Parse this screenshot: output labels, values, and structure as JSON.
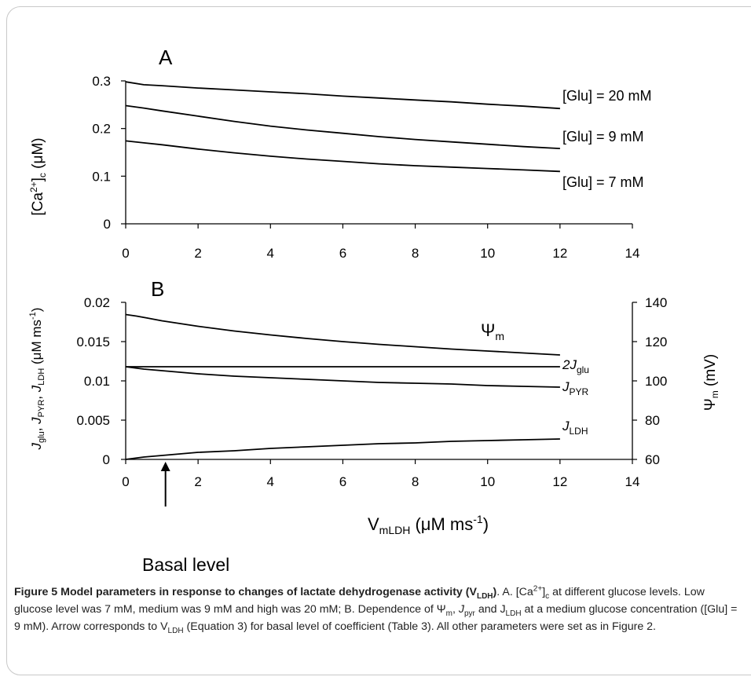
{
  "chart_data": [
    {
      "panel_label": "A",
      "type": "line",
      "ylabel": {
        "text": "[Ca",
        "sup": "2+",
        "after": "]",
        "sub": "c",
        "unit": " (μM)"
      },
      "ylim": [
        0,
        0.3
      ],
      "yticks": [
        0,
        0.1,
        0.2,
        0.3
      ],
      "xlim": [
        0,
        14
      ],
      "xticks": [
        0,
        2,
        4,
        6,
        8,
        10,
        12,
        14
      ],
      "series": [
        {
          "name": "[Glu] = 20 mM",
          "x": [
            0,
            0.5,
            1,
            2,
            3,
            4,
            5,
            6,
            7,
            8,
            9,
            10,
            11,
            12
          ],
          "values": [
            0.298,
            0.292,
            0.29,
            0.285,
            0.281,
            0.277,
            0.273,
            0.268,
            0.264,
            0.26,
            0.256,
            0.251,
            0.247,
            0.242
          ]
        },
        {
          "name": "[Glu] = 9 mM",
          "x": [
            0,
            0.5,
            1,
            2,
            3,
            4,
            5,
            6,
            7,
            8,
            9,
            10,
            11,
            12
          ],
          "values": [
            0.248,
            0.243,
            0.237,
            0.226,
            0.215,
            0.205,
            0.197,
            0.19,
            0.183,
            0.177,
            0.172,
            0.167,
            0.162,
            0.158
          ]
        },
        {
          "name": "[Glu] = 7 mM",
          "x": [
            0,
            0.5,
            1,
            2,
            3,
            4,
            5,
            6,
            7,
            8,
            9,
            10,
            11,
            12
          ],
          "values": [
            0.174,
            0.17,
            0.166,
            0.157,
            0.149,
            0.142,
            0.136,
            0.131,
            0.126,
            0.122,
            0.119,
            0.116,
            0.113,
            0.11
          ]
        }
      ]
    },
    {
      "panel_label": "B",
      "type": "line",
      "ylabel": {
        "parts": [
          {
            "t": "J",
            "i": true
          },
          {
            "t": "glu",
            "sub": true
          },
          {
            "t": ", "
          },
          {
            "t": "J",
            "i": true
          },
          {
            "t": "PYR",
            "sub": true
          },
          {
            "t": ", "
          },
          {
            "t": "J",
            "i": true
          },
          {
            "t": "LDH",
            "sub": true
          },
          {
            "t": " (μM ms"
          },
          {
            "t": "-1",
            "sup": true
          },
          {
            "t": ")"
          }
        ]
      },
      "ylim": [
        0,
        0.02
      ],
      "yticks": [
        0,
        0.005,
        0.01,
        0.015,
        0.02
      ],
      "y2label": {
        "text": "Ψ",
        "sub": "m",
        "unit": " (mV)"
      },
      "y2lim": [
        60,
        140
      ],
      "y2ticks": [
        60,
        80,
        100,
        120,
        140
      ],
      "xlim": [
        0,
        14
      ],
      "xticks": [
        0,
        2,
        4,
        6,
        8,
        10,
        12,
        14
      ],
      "xlabel": {
        "text": "V",
        "sub": "mLDH",
        "unit": " (μM ms",
        "sup": "-1",
        "end": ")"
      },
      "series": [
        {
          "name": "Ψm",
          "label_main": "Ψ",
          "label_sub": "m",
          "axis": "right",
          "x": [
            0,
            0.3,
            0.6,
            1,
            2,
            3,
            4,
            5,
            6,
            7,
            8,
            9,
            10,
            11,
            12
          ],
          "values": [
            133.8,
            133.0,
            132.0,
            130.6,
            127.8,
            125.4,
            123.4,
            121.6,
            120.0,
            118.6,
            117.4,
            116.2,
            115.2,
            114.2,
            113.2
          ]
        },
        {
          "name": "2Jglu",
          "label_main": "2J",
          "label_sub": "glu",
          "axis": "left",
          "x": [
            0,
            12
          ],
          "values": [
            0.0118,
            0.0118
          ]
        },
        {
          "name": "JPYR",
          "label_main": "J",
          "label_sub": "PYR",
          "axis": "left",
          "x": [
            0,
            0.5,
            1,
            2,
            3,
            4,
            5,
            6,
            7,
            8,
            9,
            10,
            11,
            12
          ],
          "values": [
            0.0118,
            0.0115,
            0.0113,
            0.0109,
            0.0106,
            0.0104,
            0.0102,
            0.01,
            0.0098,
            0.0097,
            0.0096,
            0.0094,
            0.0093,
            0.0092
          ]
        },
        {
          "name": "JLDH",
          "label_main": "J",
          "label_sub": "LDH",
          "axis": "left",
          "x": [
            0,
            0.5,
            1,
            2,
            3,
            4,
            5,
            6,
            7,
            8,
            9,
            10,
            11,
            12
          ],
          "values": [
            0.0,
            0.0003,
            0.0005,
            0.0009,
            0.0011,
            0.0014,
            0.0016,
            0.0018,
            0.002,
            0.0021,
            0.0023,
            0.0024,
            0.0025,
            0.0026
          ]
        }
      ],
      "annotation": {
        "text": "Basal level",
        "x": 1.1
      }
    }
  ],
  "caption": {
    "title": "Figure 5 Model parameters in response to changes of lactate dehydrogenase activity (V",
    "title_sub": "LDH",
    "title_end": ")",
    "p1": ". A. [Ca",
    "p1_sup": "2+",
    "p2": "]",
    "p2_sub": "c",
    "p3": " at different glucose levels. Low glucose level was 7 mM, medium was 9 mM and high was 20 mM; B. Dependence of Ψ",
    "p3_sub": "m",
    "p4": ", ",
    "p4_i": "J",
    "p4_sub": "pyr",
    "p5": " and J",
    "p5_sub": "LDH",
    "p6": " at a medium glucose concentration ([Glu] = 9 mM). Arrow corresponds to V",
    "p6_sub": "LDH",
    "p7": " (Equation 3) for basal level of coefficient (Table 3). All other parameters were set as in Figure 2."
  }
}
